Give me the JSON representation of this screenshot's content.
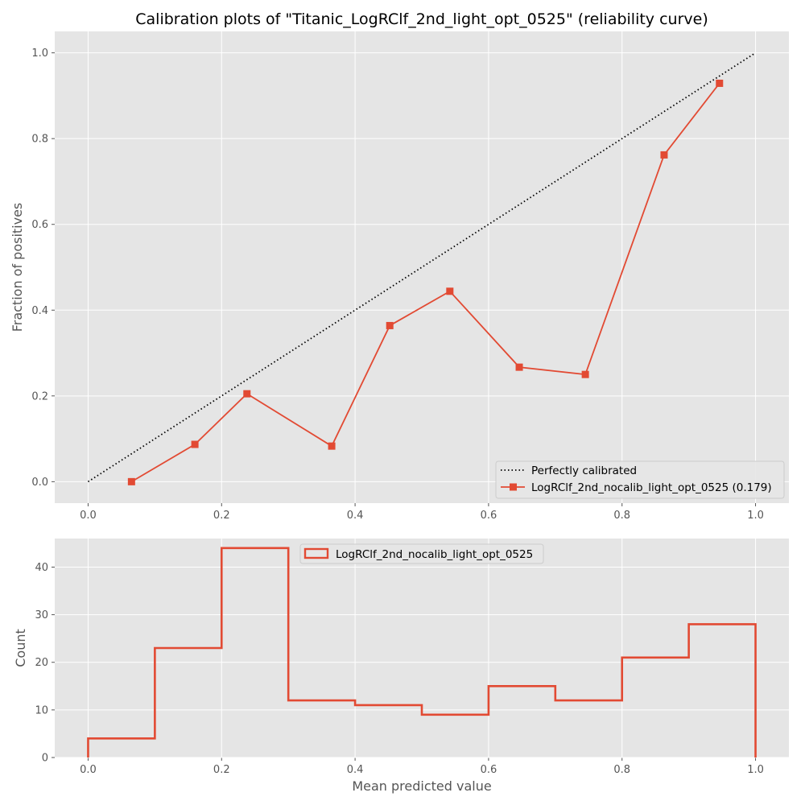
{
  "chart_data": [
    {
      "type": "line",
      "title": "Calibration plots of \"Titanic_LogRClf_2nd_light_opt_0525\" (reliability curve)",
      "xlabel": "",
      "ylabel": "Fraction of positives",
      "xlim": [
        -0.05,
        1.05
      ],
      "ylim": [
        -0.05,
        1.05
      ],
      "xticks": [
        "0.0",
        "0.2",
        "0.4",
        "0.6",
        "0.8",
        "1.0"
      ],
      "yticks": [
        "0.0",
        "0.2",
        "0.4",
        "0.6",
        "0.8",
        "1.0"
      ],
      "grid": true,
      "legend_position": "bottom-right",
      "series": [
        {
          "name": "Perfectly calibrated",
          "style": "dotted",
          "color": "#000000",
          "x": [
            0.0,
            1.0
          ],
          "y": [
            0.0,
            1.0
          ]
        },
        {
          "name": "LogRClf_2nd_nocalib_light_opt_0525 (0.179)",
          "style": "solid-square-markers",
          "color": "#E24A33",
          "x": [
            0.065,
            0.16,
            0.238,
            0.365,
            0.452,
            0.542,
            0.646,
            0.745,
            0.863,
            0.946
          ],
          "y": [
            0.0,
            0.087,
            0.205,
            0.083,
            0.364,
            0.444,
            0.267,
            0.25,
            0.762,
            0.929
          ]
        }
      ]
    },
    {
      "type": "histogram",
      "title": "",
      "xlabel": "Mean predicted value",
      "ylabel": "Count",
      "xlim": [
        -0.05,
        1.05
      ],
      "ylim": [
        0,
        46
      ],
      "xticks": [
        "0.0",
        "0.2",
        "0.4",
        "0.6",
        "0.8",
        "1.0"
      ],
      "yticks": [
        "0",
        "10",
        "20",
        "30",
        "40"
      ],
      "grid": true,
      "legend_position": "top-center",
      "series": [
        {
          "name": "LogRClf_2nd_nocalib_light_opt_0525",
          "style": "step",
          "color": "#E24A33",
          "bin_edges": [
            0.0,
            0.1,
            0.2,
            0.3,
            0.4,
            0.5,
            0.6,
            0.7,
            0.8,
            0.9,
            1.0
          ],
          "counts": [
            4,
            23,
            44,
            12,
            11,
            9,
            15,
            12,
            21,
            28
          ]
        }
      ]
    }
  ]
}
